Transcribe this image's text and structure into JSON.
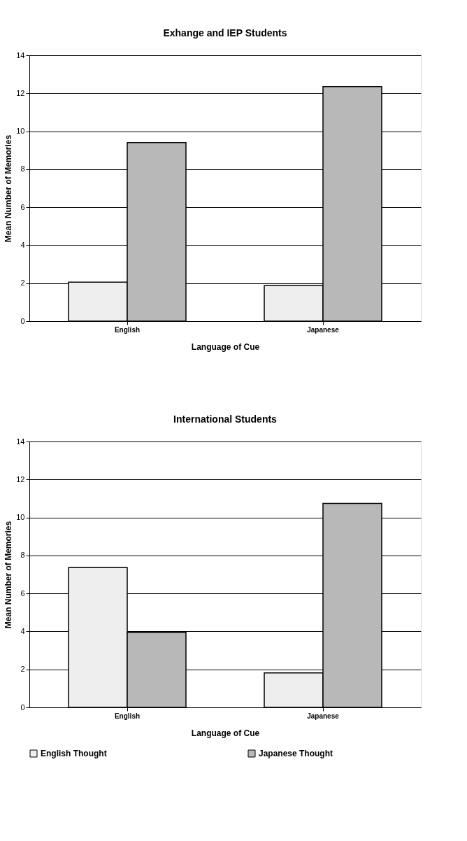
{
  "chart_data": [
    {
      "type": "bar",
      "title": "Exhange and IEP Students",
      "xlabel": "Language of Cue",
      "ylabel": "Mean Number of Memories",
      "categories": [
        "English",
        "Japanese"
      ],
      "ylim": [
        0,
        14
      ],
      "yticks": [
        0,
        2,
        4,
        6,
        8,
        10,
        12,
        14
      ],
      "grid": "y",
      "series": [
        {
          "color": "#eeeeee",
          "values": [
            2.05,
            1.87
          ]
        },
        {
          "color": "#b8b8b8",
          "values": [
            9.4,
            12.35
          ]
        }
      ]
    },
    {
      "type": "bar",
      "title": "International Students",
      "xlabel": "Language of Cue",
      "ylabel": "Mean Number of Memories",
      "categories": [
        "English",
        "Japanese"
      ],
      "ylim": [
        0,
        14
      ],
      "yticks": [
        0,
        2,
        4,
        6,
        8,
        10,
        12,
        14
      ],
      "grid": "y",
      "legend": "bottom",
      "series": [
        {
          "name": "English Thought",
          "color": "#eeeeee",
          "values": [
            7.36,
            1.81
          ]
        },
        {
          "name": "Japanese Thought",
          "color": "#b8b8b8",
          "values": [
            3.95,
            10.74
          ]
        }
      ]
    }
  ]
}
